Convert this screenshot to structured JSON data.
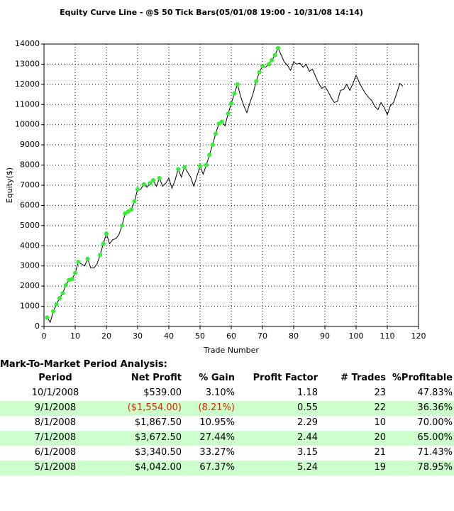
{
  "chart_data": {
    "type": "line",
    "title": "Equity Curve Line - @S 50 Tick Bars(05/01/08 19:00 - 10/31/08 14:14)",
    "x_label": "Trade Number",
    "y_label": "Equity($)",
    "xlim": [
      0,
      120
    ],
    "xticks": [
      0,
      10,
      20,
      30,
      40,
      50,
      60,
      70,
      80,
      90,
      100,
      110,
      120
    ],
    "ylim": [
      0,
      14000
    ],
    "yticks": [
      0,
      1000,
      2000,
      3000,
      4000,
      5000,
      6000,
      7000,
      8000,
      9000,
      10000,
      11000,
      12000,
      13000,
      14000
    ],
    "grid": true,
    "color": "#000000",
    "marker_color": "#33ee33",
    "x": [
      1,
      2,
      3,
      4,
      5,
      6,
      7,
      8,
      9,
      10,
      11,
      12,
      13,
      14,
      15,
      16,
      17,
      18,
      19,
      20,
      21,
      22,
      23,
      24,
      25,
      26,
      27,
      28,
      29,
      30,
      31,
      32,
      33,
      34,
      35,
      36,
      37,
      38,
      39,
      40,
      41,
      42,
      43,
      44,
      45,
      46,
      47,
      48,
      49,
      50,
      51,
      52,
      53,
      54,
      55,
      56,
      57,
      58,
      59,
      60,
      61,
      62,
      63,
      64,
      65,
      66,
      67,
      68,
      69,
      70,
      71,
      72,
      73,
      74,
      75,
      76,
      77,
      78,
      79,
      80,
      81,
      82,
      83,
      84,
      85,
      86,
      87,
      88,
      89,
      90,
      91,
      92,
      93,
      94,
      95,
      96,
      97,
      98,
      99,
      100,
      101,
      102,
      103,
      104,
      105,
      106,
      107,
      108,
      109,
      110,
      111,
      112,
      113,
      114,
      115
    ],
    "values": [
      450,
      200,
      750,
      1100,
      1400,
      1650,
      2050,
      2300,
      2350,
      2650,
      3200,
      3100,
      3000,
      3350,
      2900,
      2900,
      3100,
      3550,
      4100,
      4600,
      4100,
      4300,
      4350,
      4550,
      5000,
      5600,
      5700,
      5800,
      6200,
      6800,
      6800,
      7050,
      6900,
      7100,
      7250,
      6950,
      7350,
      6950,
      7100,
      7350,
      6850,
      7250,
      7800,
      7400,
      7900,
      7650,
      7400,
      6950,
      7450,
      7950,
      7550,
      8000,
      8500,
      9000,
      9550,
      10050,
      10150,
      9950,
      10550,
      11050,
      11550,
      12000,
      11400,
      10950,
      10600,
      11100,
      11550,
      12150,
      12600,
      12900,
      12850,
      13000,
      13200,
      13450,
      13800,
      13450,
      13100,
      12950,
      12700,
      13100,
      13000,
      13050,
      12850,
      13000,
      12650,
      12750,
      12400,
      12050,
      11800,
      11900,
      11650,
      11350,
      11100,
      11150,
      11700,
      11750,
      12000,
      11700,
      12050,
      12450,
      12100,
      11800,
      11550,
      11350,
      11200,
      10900,
      10750,
      11100,
      10850,
      10500,
      10950,
      11100,
      11550,
      12050,
      11900
    ]
  },
  "table": {
    "title": "Mark-To-Market Period Analysis:",
    "columns": [
      "Period",
      "Net Profit",
      "% Gain",
      "Profit Factor",
      "# Trades",
      "%Profitable"
    ],
    "rows": [
      [
        "10/1/2008",
        "$539.00",
        "3.10%",
        "1.18",
        "23",
        "47.83%"
      ],
      [
        "9/1/2008",
        "($1,554.00)",
        "(8.21%)",
        "0.55",
        "22",
        "36.36%"
      ],
      [
        "8/1/2008",
        "$1,867.50",
        "10.95%",
        "2.29",
        "10",
        "70.00%"
      ],
      [
        "7/1/2008",
        "$3,672.50",
        "27.44%",
        "2.44",
        "20",
        "65.00%"
      ],
      [
        "6/1/2008",
        "$3,340.50",
        "33.27%",
        "3.15",
        "21",
        "71.43%"
      ],
      [
        "5/1/2008",
        "$4,042.00",
        "67.37%",
        "5.24",
        "19",
        "78.95%"
      ]
    ]
  }
}
